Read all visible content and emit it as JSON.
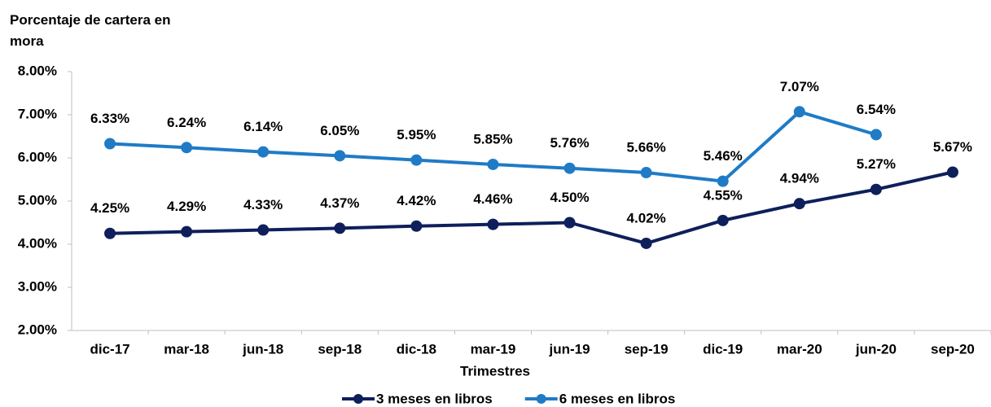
{
  "chart_data": {
    "type": "line",
    "title": "Porcentaje de cartera en mora",
    "xlabel": "Trimestres",
    "categories": [
      "dic-17",
      "mar-18",
      "jun-18",
      "sep-18",
      "dic-18",
      "mar-19",
      "jun-19",
      "sep-19",
      "dic-19",
      "mar-20",
      "jun-20",
      "sep-20"
    ],
    "series": [
      {
        "name": "3 meses en libros",
        "color": "#0e1f5b",
        "values": [
          4.25,
          4.29,
          4.33,
          4.37,
          4.42,
          4.46,
          4.5,
          4.02,
          4.55,
          4.94,
          5.27,
          5.67
        ],
        "value_labels": [
          "4.25%",
          "4.29%",
          "4.33%",
          "4.37%",
          "4.42%",
          "4.46%",
          "4.50%",
          "4.02%",
          "4.55%",
          "4.94%",
          "5.27%",
          "5.67%"
        ]
      },
      {
        "name": "6 meses en libros",
        "color": "#1f7bc6",
        "values": [
          6.33,
          6.24,
          6.14,
          6.05,
          5.95,
          5.85,
          5.76,
          5.66,
          5.46,
          7.07,
          6.54,
          null
        ],
        "value_labels": [
          "6.33%",
          "6.24%",
          "6.14%",
          "6.05%",
          "5.95%",
          "5.85%",
          "5.76%",
          "5.66%",
          "5.46%",
          "7.07%",
          "6.54%",
          null
        ]
      }
    ],
    "ylim": [
      2,
      8
    ],
    "yticks": [
      {
        "value": 2,
        "label": "2.00%"
      },
      {
        "value": 3,
        "label": "3.00%"
      },
      {
        "value": 4,
        "label": "4.00%"
      },
      {
        "value": 5,
        "label": "5.00%"
      },
      {
        "value": 6,
        "label": "6.00%"
      },
      {
        "value": 7,
        "label": "7.00%"
      },
      {
        "value": 8,
        "label": "8.00%"
      }
    ],
    "legend": "bottom",
    "grid": false
  }
}
